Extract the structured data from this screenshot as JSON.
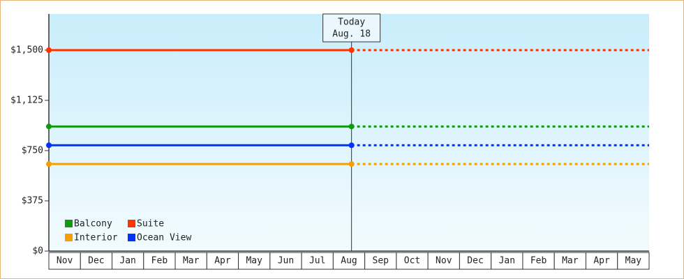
{
  "chart_data": {
    "type": "line",
    "categories": [
      "Nov",
      "Dec",
      "Jan",
      "Feb",
      "Mar",
      "Apr",
      "May",
      "Jun",
      "Jul",
      "Aug",
      "Sep",
      "Oct",
      "Nov",
      "Dec",
      "Jan",
      "Feb",
      "Mar",
      "Apr",
      "May"
    ],
    "series": [
      {
        "name": "Balcony",
        "color": "#119911",
        "value": 930
      },
      {
        "name": "Suite",
        "color": "#ff3300",
        "value": 1500
      },
      {
        "name": "Interior",
        "color": "#f5a000",
        "value": 650
      },
      {
        "name": "Ocean View",
        "color": "#0033ff",
        "value": 790
      }
    ],
    "ylim": [
      0,
      1770
    ],
    "yticks": [
      {
        "value": 0,
        "label": "$0"
      },
      {
        "value": 375,
        "label": "$375"
      },
      {
        "value": 750,
        "label": "$750"
      },
      {
        "value": 1125,
        "label": "$1,125"
      },
      {
        "value": 1500,
        "label": "$1,500"
      }
    ],
    "today": {
      "label": "Today",
      "date": "Aug. 18"
    },
    "legend": "lower left"
  }
}
